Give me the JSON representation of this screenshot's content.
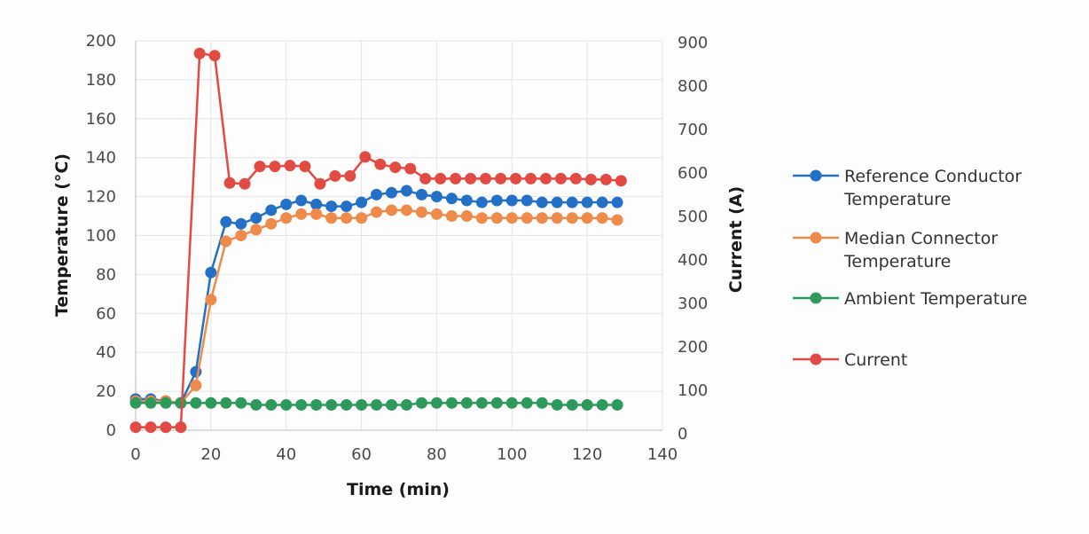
{
  "chart_data": {
    "type": "line",
    "title": "",
    "xlabel": "Time (min)",
    "ylabel": "Temperature (°C)",
    "y2label": "Current (A)",
    "xlim": [
      0,
      140
    ],
    "ylim": [
      0,
      200
    ],
    "y2lim": [
      0,
      900
    ],
    "xticks": [
      0,
      20,
      40,
      60,
      80,
      100,
      120,
      140
    ],
    "yticks": [
      0,
      20,
      40,
      60,
      80,
      100,
      120,
      140,
      160,
      180,
      200
    ],
    "y2ticks": [
      0,
      100,
      200,
      300,
      400,
      500,
      600,
      700,
      800,
      900
    ],
    "grid": true,
    "legend_position": "right",
    "series": [
      {
        "name": "Reference Conductor Temperature",
        "color": "#2470c6",
        "axis": "left",
        "x": [
          0,
          4,
          8,
          12,
          16,
          20,
          24,
          28,
          32,
          36,
          40,
          44,
          48,
          52,
          56,
          60,
          64,
          68,
          72,
          76,
          80,
          84,
          88,
          92,
          96,
          100,
          104,
          108,
          112,
          116,
          120,
          124,
          128
        ],
        "values": [
          16,
          16,
          15,
          14,
          30,
          81,
          107,
          106,
          109,
          113,
          116,
          118,
          116,
          115,
          115,
          117,
          121,
          122,
          123,
          121,
          120,
          119,
          118,
          117,
          118,
          118,
          118,
          117,
          117,
          117,
          117,
          117,
          117
        ]
      },
      {
        "name": "Median Connector Temperature",
        "color": "#ee8a4a",
        "axis": "left",
        "x": [
          0,
          4,
          8,
          12,
          16,
          20,
          24,
          28,
          32,
          36,
          40,
          44,
          48,
          52,
          56,
          60,
          64,
          68,
          72,
          76,
          80,
          84,
          88,
          92,
          96,
          100,
          104,
          108,
          112,
          116,
          120,
          124,
          128
        ],
        "values": [
          15,
          15,
          15,
          14,
          23,
          67,
          97,
          100,
          103,
          106,
          109,
          111,
          111,
          109,
          109,
          109,
          112,
          113,
          113,
          112,
          111,
          110,
          110,
          109,
          109,
          109,
          109,
          109,
          109,
          109,
          109,
          109,
          108
        ]
      },
      {
        "name": "Ambient Temperature",
        "color": "#2d9a5c",
        "axis": "left",
        "x": [
          0,
          4,
          8,
          12,
          16,
          20,
          24,
          28,
          32,
          36,
          40,
          44,
          48,
          52,
          56,
          60,
          64,
          68,
          72,
          76,
          80,
          84,
          88,
          92,
          96,
          100,
          104,
          108,
          112,
          116,
          120,
          124,
          128
        ],
        "values": [
          14,
          14,
          14,
          14,
          14,
          14,
          14,
          14,
          13,
          13,
          13,
          13,
          13,
          13,
          13,
          13,
          13,
          13,
          13,
          14,
          14,
          14,
          14,
          14,
          14,
          14,
          14,
          14,
          13,
          13,
          13,
          13,
          13
        ]
      },
      {
        "name": "Current",
        "color": "#e24b43",
        "axis": "right",
        "x": [
          0,
          4,
          8,
          12,
          17,
          21,
          25,
          29,
          33,
          37,
          41,
          45,
          49,
          53,
          57,
          61,
          65,
          69,
          73,
          77,
          81,
          85,
          89,
          93,
          97,
          101,
          105,
          109,
          113,
          117,
          121,
          125,
          129
        ],
        "values": [
          15,
          15,
          15,
          15,
          875,
          870,
          577,
          575,
          615,
          615,
          617,
          615,
          575,
          593,
          593,
          637,
          620,
          613,
          610,
          587,
          587,
          587,
          587,
          587,
          587,
          587,
          587,
          587,
          587,
          587,
          585,
          585,
          582
        ]
      }
    ]
  }
}
